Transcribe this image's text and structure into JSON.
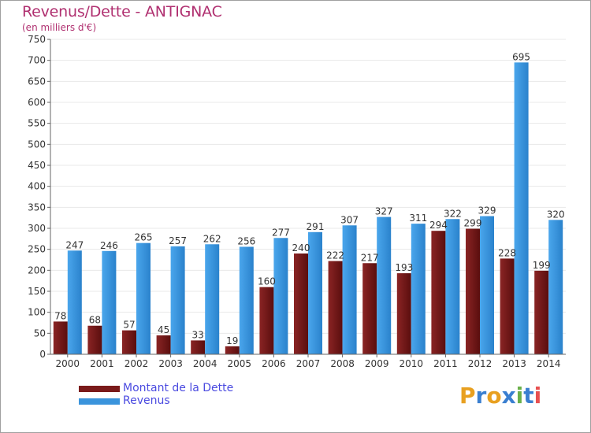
{
  "title": "Revenus/Dette - ANTIGNAC",
  "subtitle": "(en milliers d'€)",
  "brand": {
    "letters": [
      "P",
      "r",
      "o",
      "x",
      "i",
      "t",
      "i"
    ],
    "colors": [
      "#e8a020",
      "#3a7fd0",
      "#e8a020",
      "#3a7fd0",
      "#6ab04a",
      "#3a7fd0",
      "#e85050"
    ]
  },
  "colors": {
    "dette": "#7a1a1a",
    "revenus": "#3a94dc",
    "grid": "#e8e8e8",
    "axis": "#666666"
  },
  "chart_data": {
    "type": "bar",
    "title": "Revenus/Dette - ANTIGNAC",
    "subtitle": "(en milliers d'€)",
    "categories": [
      "2000",
      "2001",
      "2002",
      "2003",
      "2004",
      "2005",
      "2006",
      "2007",
      "2008",
      "2009",
      "2010",
      "2011",
      "2012",
      "2013",
      "2014"
    ],
    "series": [
      {
        "name": "Montant de la Dette",
        "values": [
          78,
          68,
          57,
          45,
          33,
          19,
          160,
          240,
          222,
          217,
          193,
          294,
          299,
          228,
          199
        ]
      },
      {
        "name": "Revenus",
        "values": [
          247,
          246,
          265,
          257,
          262,
          256,
          277,
          291,
          307,
          327,
          311,
          322,
          329,
          695,
          320
        ]
      }
    ],
    "yticks": [
      0,
      50,
      100,
      150,
      200,
      250,
      300,
      350,
      400,
      450,
      500,
      550,
      600,
      650,
      700,
      750
    ],
    "ylim": [
      0,
      750
    ],
    "grid": true,
    "legend_position": "bottom-left"
  }
}
